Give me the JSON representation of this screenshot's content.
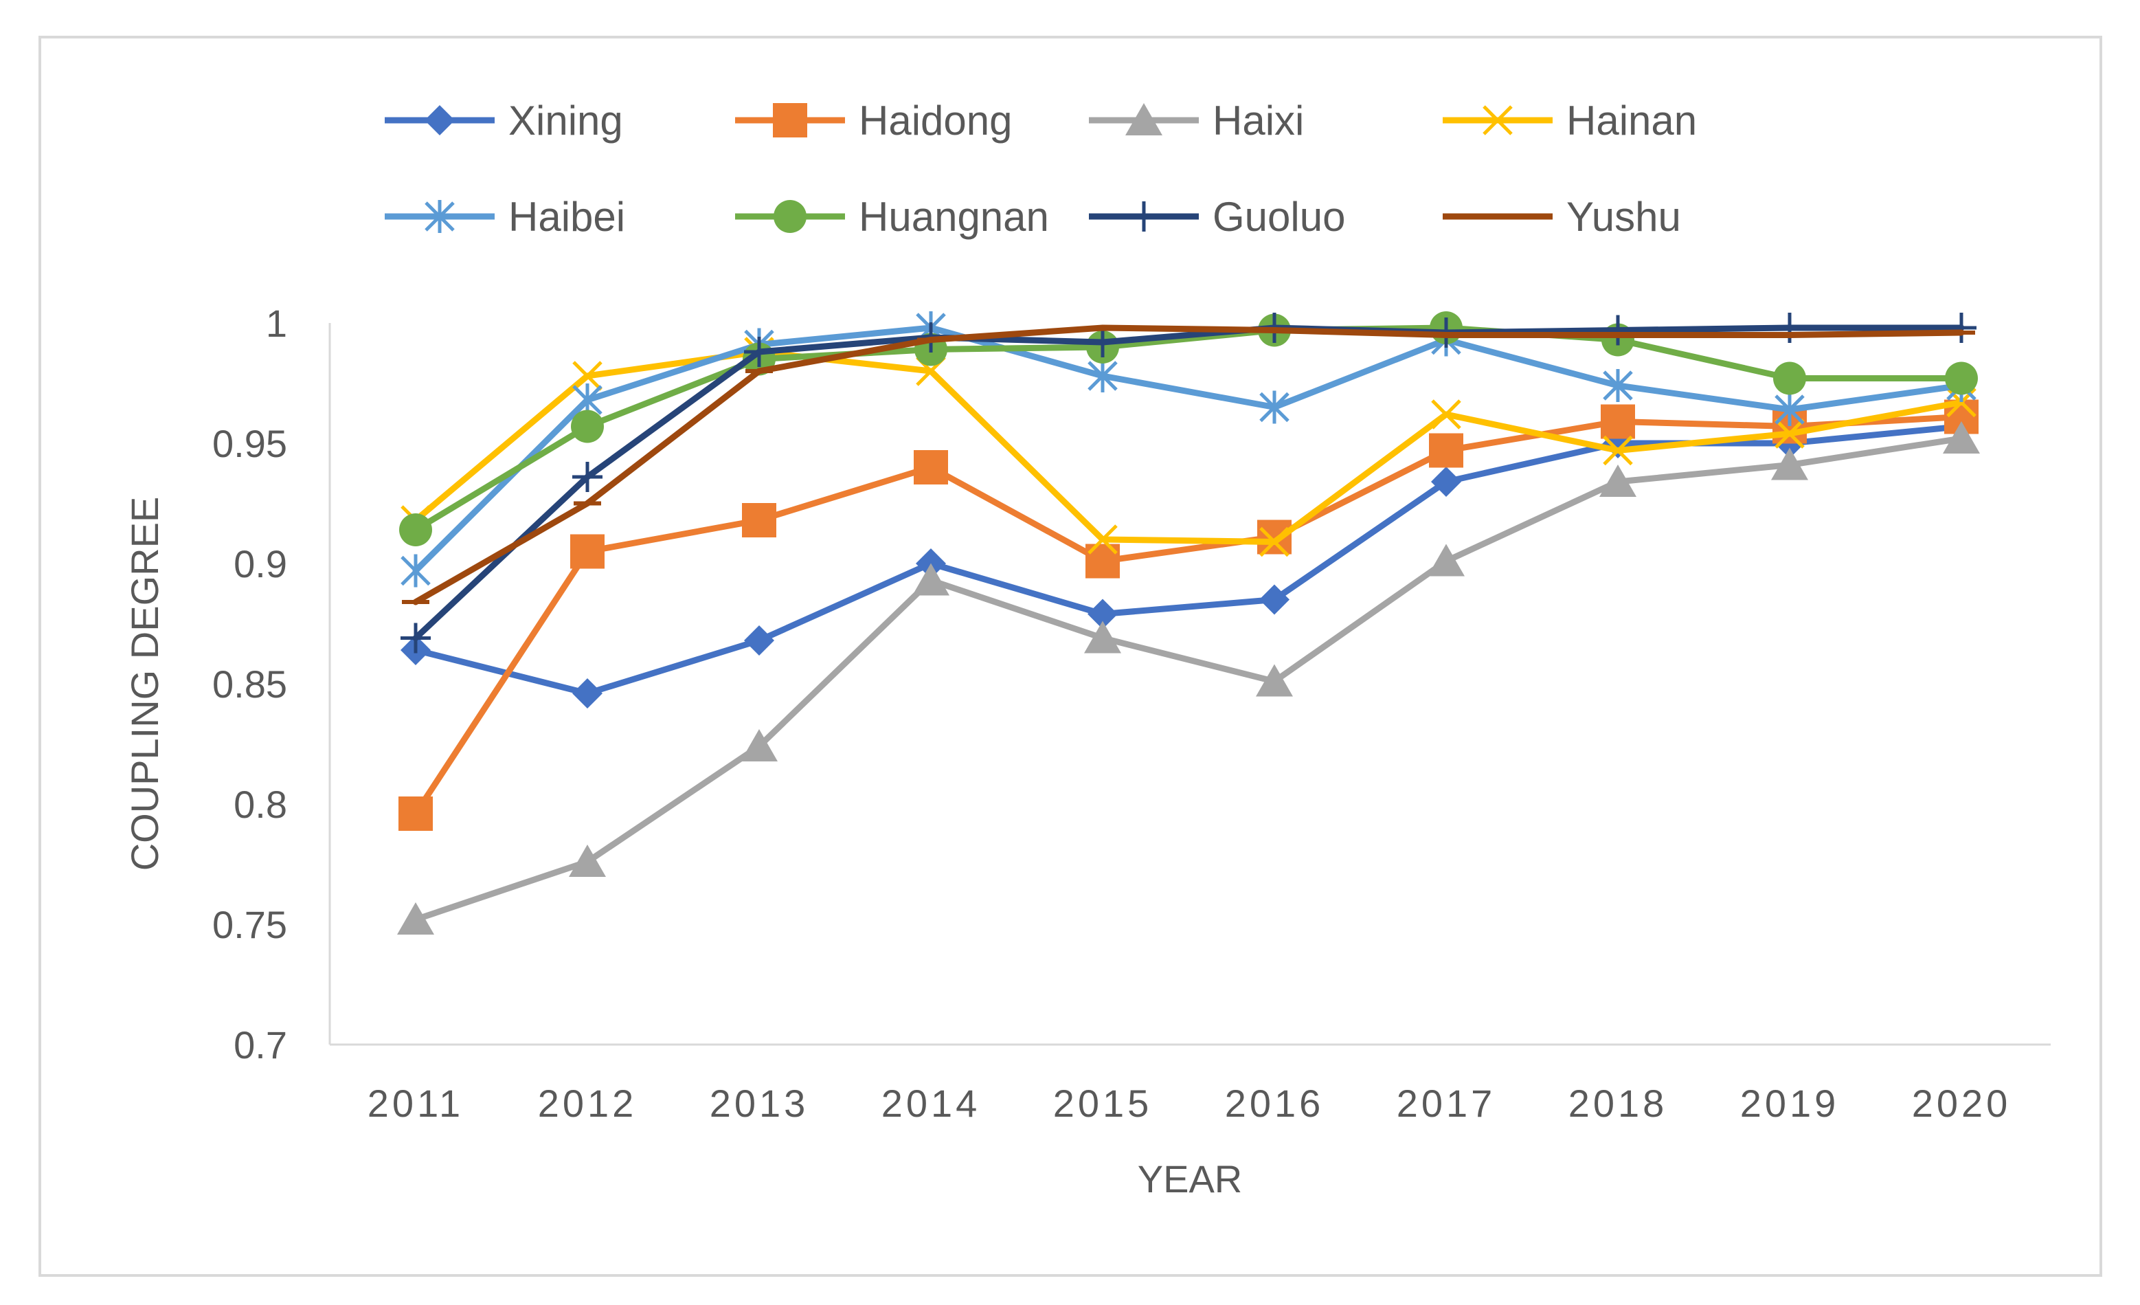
{
  "chart_data": {
    "type": "line",
    "title": "",
    "xlabel": "YEAR",
    "ylabel": "COUPLING DEGREE",
    "ylim": [
      0.7,
      1.0
    ],
    "yticks": [
      0.7,
      0.75,
      0.8,
      0.85,
      0.9,
      0.95,
      1
    ],
    "ytick_labels": [
      "0.7",
      "0.75",
      "0.8",
      "0.85",
      "0.9",
      "0.95",
      "1"
    ],
    "grid": false,
    "legend_position": "top",
    "categories": [
      "2011",
      "2012",
      "2013",
      "2014",
      "2015",
      "2016",
      "2017",
      "2018",
      "2019",
      "2020"
    ],
    "series": [
      {
        "name": "Xining",
        "color": "#4472C4",
        "marker": "diamond",
        "values": [
          0.864,
          0.846,
          0.868,
          0.9,
          0.879,
          0.885,
          0.934,
          0.95,
          0.95,
          0.957
        ]
      },
      {
        "name": "Haidong",
        "color": "#ED7D31",
        "marker": "square",
        "values": [
          0.796,
          0.905,
          0.918,
          0.94,
          0.901,
          0.911,
          0.947,
          0.959,
          0.957,
          0.961
        ]
      },
      {
        "name": "Haixi",
        "color": "#A5A5A5",
        "marker": "triangle",
        "values": [
          0.752,
          0.776,
          0.824,
          0.893,
          0.869,
          0.851,
          0.901,
          0.934,
          0.941,
          0.952
        ]
      },
      {
        "name": "Hainan",
        "color": "#FFC000",
        "marker": "x",
        "values": [
          0.918,
          0.978,
          0.988,
          0.98,
          0.91,
          0.909,
          0.962,
          0.947,
          0.954,
          0.967
        ]
      },
      {
        "name": "Haibei",
        "color": "#5B9BD5",
        "marker": "star",
        "values": [
          0.897,
          0.968,
          0.991,
          0.998,
          0.978,
          0.965,
          0.993,
          0.974,
          0.964,
          0.974
        ]
      },
      {
        "name": "Huangnan",
        "color": "#70AD47",
        "marker": "circle",
        "values": [
          0.914,
          0.957,
          0.985,
          0.989,
          0.99,
          0.997,
          0.998,
          0.993,
          0.977,
          0.977
        ]
      },
      {
        "name": "Guoluo",
        "color": "#264478",
        "marker": "plus",
        "values": [
          0.869,
          0.936,
          0.988,
          0.994,
          0.992,
          0.998,
          0.996,
          0.997,
          0.998,
          0.998
        ]
      },
      {
        "name": "Yushu",
        "color": "#9E480E",
        "marker": "dash",
        "values": [
          0.884,
          0.925,
          0.98,
          0.993,
          0.998,
          0.997,
          0.995,
          0.995,
          0.995,
          0.996
        ]
      }
    ]
  }
}
